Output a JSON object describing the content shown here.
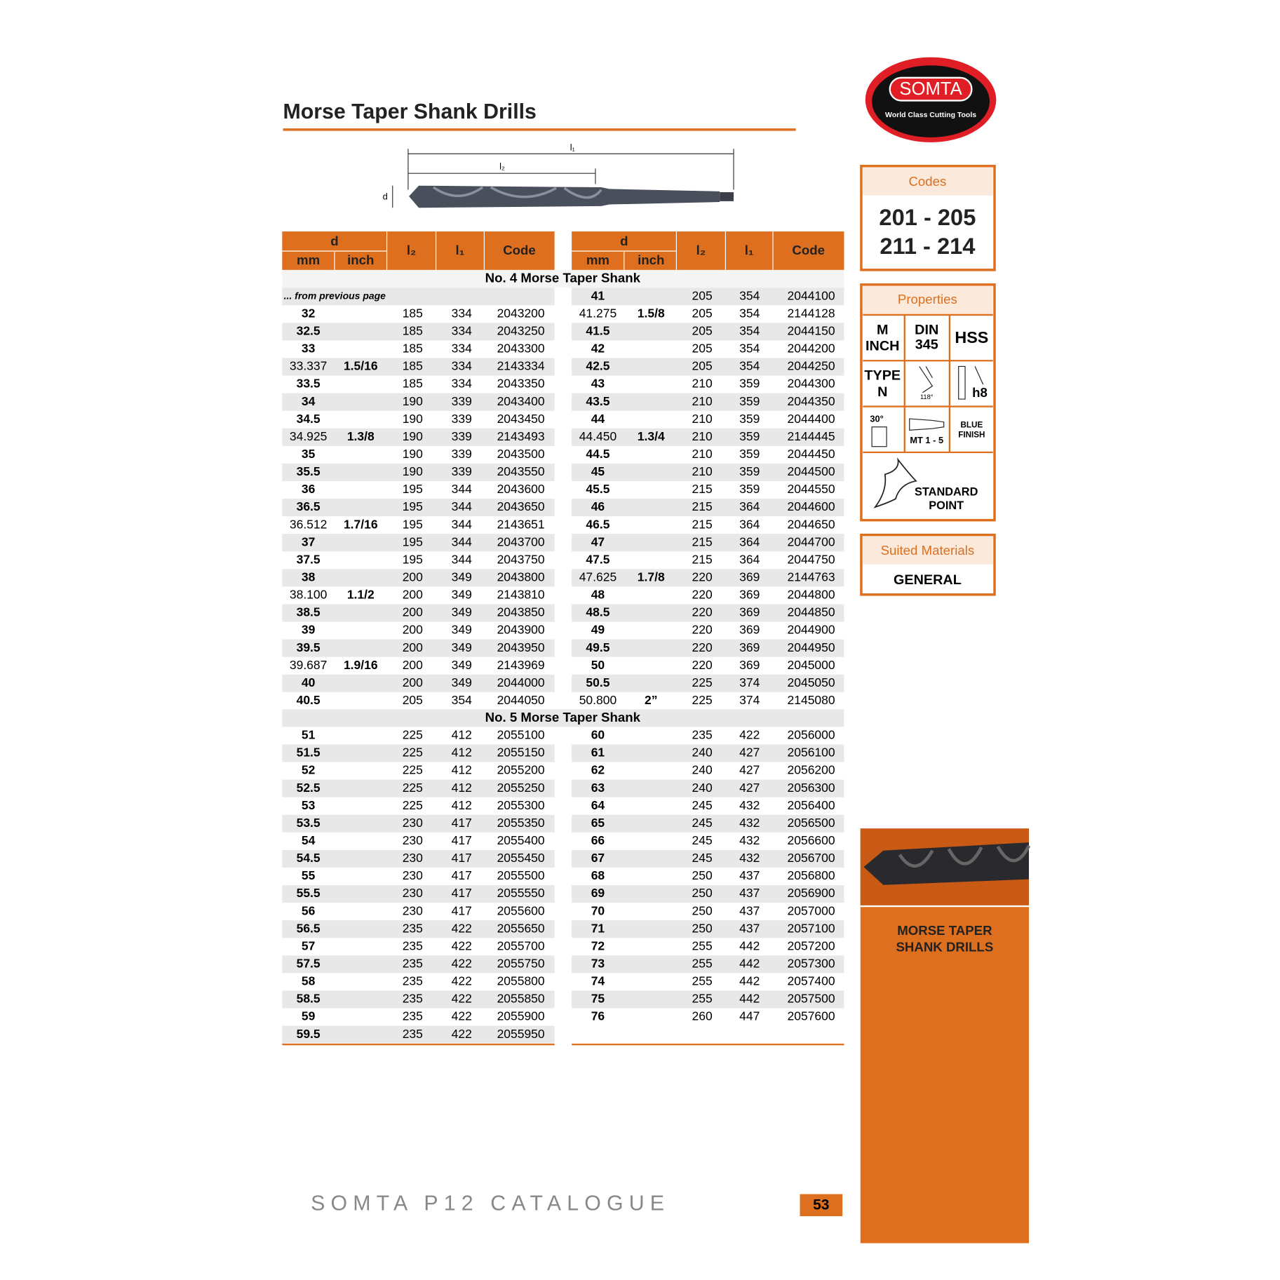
{
  "header": {
    "title": "Morse Taper Shank Drills",
    "logo": "SOMTA",
    "tagline": "World Class Cutting Tools"
  },
  "diagram": {
    "l1": "l₁",
    "l2": "l₂",
    "d": "d"
  },
  "table": {
    "header": {
      "d": "d",
      "mm": "mm",
      "inch": "inch",
      "l2": "l₂",
      "l1": "l₁",
      "code": "Code"
    },
    "note": "... from previous page",
    "sections": [
      {
        "title": "No. 4 Morse Taper Shank",
        "left": [
          {
            "mm": "32",
            "l2": "185",
            "l1": "334",
            "code": "2043200"
          },
          {
            "mm": "32.5",
            "l2": "185",
            "l1": "334",
            "code": "2043250"
          },
          {
            "mm": "33",
            "l2": "185",
            "l1": "334",
            "code": "2043300"
          },
          {
            "mm": "33.337",
            "inch": "1.5/16",
            "l2": "185",
            "l1": "334",
            "code": "2143334"
          },
          {
            "mm": "33.5",
            "l2": "185",
            "l1": "334",
            "code": "2043350"
          },
          {
            "mm": "34",
            "l2": "190",
            "l1": "339",
            "code": "2043400"
          },
          {
            "mm": "34.5",
            "l2": "190",
            "l1": "339",
            "code": "2043450"
          },
          {
            "mm": "34.925",
            "inch": "1.3/8",
            "l2": "190",
            "l1": "339",
            "code": "2143493"
          },
          {
            "mm": "35",
            "l2": "190",
            "l1": "339",
            "code": "2043500"
          },
          {
            "mm": "35.5",
            "l2": "190",
            "l1": "339",
            "code": "2043550"
          },
          {
            "mm": "36",
            "l2": "195",
            "l1": "344",
            "code": "2043600"
          },
          {
            "mm": "36.5",
            "l2": "195",
            "l1": "344",
            "code": "2043650"
          },
          {
            "mm": "36.512",
            "inch": "1.7/16",
            "l2": "195",
            "l1": "344",
            "code": "2143651"
          },
          {
            "mm": "37",
            "l2": "195",
            "l1": "344",
            "code": "2043700"
          },
          {
            "mm": "37.5",
            "l2": "195",
            "l1": "344",
            "code": "2043750"
          },
          {
            "mm": "38",
            "l2": "200",
            "l1": "349",
            "code": "2043800"
          },
          {
            "mm": "38.100",
            "inch": "1.1/2",
            "l2": "200",
            "l1": "349",
            "code": "2143810"
          },
          {
            "mm": "38.5",
            "l2": "200",
            "l1": "349",
            "code": "2043850"
          },
          {
            "mm": "39",
            "l2": "200",
            "l1": "349",
            "code": "2043900"
          },
          {
            "mm": "39.5",
            "l2": "200",
            "l1": "349",
            "code": "2043950"
          },
          {
            "mm": "39.687",
            "inch": "1.9/16",
            "l2": "200",
            "l1": "349",
            "code": "2143969"
          },
          {
            "mm": "40",
            "l2": "200",
            "l1": "349",
            "code": "2044000"
          },
          {
            "mm": "40.5",
            "l2": "205",
            "l1": "354",
            "code": "2044050"
          }
        ],
        "right": [
          {
            "mm": "41",
            "l2": "205",
            "l1": "354",
            "code": "2044100"
          },
          {
            "mm": "41.275",
            "inch": "1.5/8",
            "l2": "205",
            "l1": "354",
            "code": "2144128"
          },
          {
            "mm": "41.5",
            "l2": "205",
            "l1": "354",
            "code": "2044150"
          },
          {
            "mm": "42",
            "l2": "205",
            "l1": "354",
            "code": "2044200"
          },
          {
            "mm": "42.5",
            "l2": "205",
            "l1": "354",
            "code": "2044250"
          },
          {
            "mm": "43",
            "l2": "210",
            "l1": "359",
            "code": "2044300"
          },
          {
            "mm": "43.5",
            "l2": "210",
            "l1": "359",
            "code": "2044350"
          },
          {
            "mm": "44",
            "l2": "210",
            "l1": "359",
            "code": "2044400"
          },
          {
            "mm": "44.450",
            "inch": "1.3/4",
            "l2": "210",
            "l1": "359",
            "code": "2144445"
          },
          {
            "mm": "44.5",
            "l2": "210",
            "l1": "359",
            "code": "2044450"
          },
          {
            "mm": "45",
            "l2": "210",
            "l1": "359",
            "code": "2044500"
          },
          {
            "mm": "45.5",
            "l2": "215",
            "l1": "359",
            "code": "2044550"
          },
          {
            "mm": "46",
            "l2": "215",
            "l1": "364",
            "code": "2044600"
          },
          {
            "mm": "46.5",
            "l2": "215",
            "l1": "364",
            "code": "2044650"
          },
          {
            "mm": "47",
            "l2": "215",
            "l1": "364",
            "code": "2044700"
          },
          {
            "mm": "47.5",
            "l2": "215",
            "l1": "364",
            "code": "2044750"
          },
          {
            "mm": "47.625",
            "inch": "1.7/8",
            "l2": "220",
            "l1": "369",
            "code": "2144763"
          },
          {
            "mm": "48",
            "l2": "220",
            "l1": "369",
            "code": "2044800"
          },
          {
            "mm": "48.5",
            "l2": "220",
            "l1": "369",
            "code": "2044850"
          },
          {
            "mm": "49",
            "l2": "220",
            "l1": "369",
            "code": "2044900"
          },
          {
            "mm": "49.5",
            "l2": "220",
            "l1": "369",
            "code": "2044950"
          },
          {
            "mm": "50",
            "l2": "220",
            "l1": "369",
            "code": "2045000"
          },
          {
            "mm": "50.5",
            "l2": "225",
            "l1": "374",
            "code": "2045050"
          },
          {
            "mm": "50.800",
            "inch": "2”",
            "l2": "225",
            "l1": "374",
            "code": "2145080"
          }
        ]
      },
      {
        "title": "No. 5 Morse Taper Shank",
        "left": [
          {
            "mm": "51",
            "l2": "225",
            "l1": "412",
            "code": "2055100"
          },
          {
            "mm": "51.5",
            "l2": "225",
            "l1": "412",
            "code": "2055150"
          },
          {
            "mm": "52",
            "l2": "225",
            "l1": "412",
            "code": "2055200"
          },
          {
            "mm": "52.5",
            "l2": "225",
            "l1": "412",
            "code": "2055250"
          },
          {
            "mm": "53",
            "l2": "225",
            "l1": "412",
            "code": "2055300"
          },
          {
            "mm": "53.5",
            "l2": "230",
            "l1": "417",
            "code": "2055350"
          },
          {
            "mm": "54",
            "l2": "230",
            "l1": "417",
            "code": "2055400"
          },
          {
            "mm": "54.5",
            "l2": "230",
            "l1": "417",
            "code": "2055450"
          },
          {
            "mm": "55",
            "l2": "230",
            "l1": "417",
            "code": "2055500"
          },
          {
            "mm": "55.5",
            "l2": "230",
            "l1": "417",
            "code": "2055550"
          },
          {
            "mm": "56",
            "l2": "230",
            "l1": "417",
            "code": "2055600"
          },
          {
            "mm": "56.5",
            "l2": "235",
            "l1": "422",
            "code": "2055650"
          },
          {
            "mm": "57",
            "l2": "235",
            "l1": "422",
            "code": "2055700"
          },
          {
            "mm": "57.5",
            "l2": "235",
            "l1": "422",
            "code": "2055750"
          },
          {
            "mm": "58",
            "l2": "235",
            "l1": "422",
            "code": "2055800"
          },
          {
            "mm": "58.5",
            "l2": "235",
            "l1": "422",
            "code": "2055850"
          },
          {
            "mm": "59",
            "l2": "235",
            "l1": "422",
            "code": "2055900"
          },
          {
            "mm": "59.5",
            "l2": "235",
            "l1": "422",
            "code": "2055950"
          }
        ],
        "right": [
          {
            "mm": "60",
            "l2": "235",
            "l1": "422",
            "code": "2056000"
          },
          {
            "mm": "61",
            "l2": "240",
            "l1": "427",
            "code": "2056100"
          },
          {
            "mm": "62",
            "l2": "240",
            "l1": "427",
            "code": "2056200"
          },
          {
            "mm": "63",
            "l2": "240",
            "l1": "427",
            "code": "2056300"
          },
          {
            "mm": "64",
            "l2": "245",
            "l1": "432",
            "code": "2056400"
          },
          {
            "mm": "65",
            "l2": "245",
            "l1": "432",
            "code": "2056500"
          },
          {
            "mm": "66",
            "l2": "245",
            "l1": "432",
            "code": "2056600"
          },
          {
            "mm": "67",
            "l2": "245",
            "l1": "432",
            "code": "2056700"
          },
          {
            "mm": "68",
            "l2": "250",
            "l1": "437",
            "code": "2056800"
          },
          {
            "mm": "69",
            "l2": "250",
            "l1": "437",
            "code": "2056900"
          },
          {
            "mm": "70",
            "l2": "250",
            "l1": "437",
            "code": "2057000"
          },
          {
            "mm": "71",
            "l2": "250",
            "l1": "437",
            "code": "2057100"
          },
          {
            "mm": "72",
            "l2": "255",
            "l1": "442",
            "code": "2057200"
          },
          {
            "mm": "73",
            "l2": "255",
            "l1": "442",
            "code": "2057300"
          },
          {
            "mm": "74",
            "l2": "255",
            "l1": "442",
            "code": "2057400"
          },
          {
            "mm": "75",
            "l2": "255",
            "l1": "442",
            "code": "2057500"
          },
          {
            "mm": "76",
            "l2": "260",
            "l1": "447",
            "code": "2057600"
          }
        ]
      }
    ]
  },
  "sidebar": {
    "codes": {
      "title": "Codes",
      "lines": [
        "201 - 205",
        "211 - 214"
      ]
    },
    "properties": {
      "title": "Properties",
      "m": "M",
      "inch": "INCH",
      "din": "DIN",
      "din_no": "345",
      "hss": "HSS",
      "type": "TYPE",
      "type_n": "N",
      "angle": "118°",
      "tol": "h8",
      "helix": "30°",
      "shank": "MT 1 - 5",
      "finish1": "BLUE",
      "finish2": "FINISH",
      "point1": "STANDARD",
      "point2": "POINT"
    },
    "materials": {
      "title": "Suited Materials",
      "value": "GENERAL"
    },
    "banner": [
      "MORSE TAPER",
      "SHANK DRILLS"
    ]
  },
  "footer": {
    "catalogue": "SOMTA P12 CATALOGUE",
    "page": "53"
  }
}
